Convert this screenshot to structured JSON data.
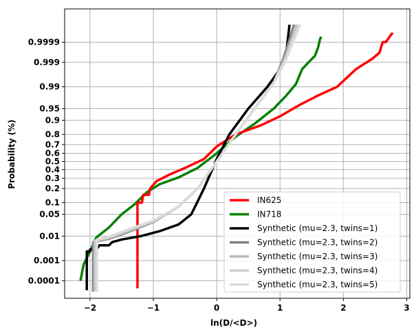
{
  "chart_data": {
    "type": "line",
    "xlabel": "ln(D/<D>)",
    "ylabel": "Probability (%)",
    "xlim": [
      -2.4,
      3.05
    ],
    "ylim_probability": [
      1e-05,
      0.999999
    ],
    "y_scale": "normal-probability",
    "grid": true,
    "legend_position": "bottom-right",
    "x_ticks": [
      -2,
      -1,
      0,
      1,
      2,
      3
    ],
    "x_tick_labels": [
      "−2",
      "−1",
      "0",
      "1",
      "2",
      "3"
    ],
    "y_ticks": [
      0.0001,
      0.001,
      0.01,
      0.05,
      0.1,
      0.2,
      0.3,
      0.4,
      0.5,
      0.6,
      0.7,
      0.8,
      0.9,
      0.95,
      0.99,
      0.999,
      0.9999
    ],
    "y_tick_labels": [
      "0.0001",
      "0.001",
      "0.01",
      "0.05",
      "0.1",
      "0.2",
      "0.3",
      "0.4",
      "0.5",
      "0.6",
      "0.7",
      "0.8",
      "0.9",
      "0.95",
      "0.99",
      "0.999",
      "0.9999"
    ],
    "series": [
      {
        "name": "IN625",
        "color": "#ff0000",
        "points": [
          [
            -1.25,
            3.8e-05
          ],
          [
            -1.25,
            0.0015
          ],
          [
            -1.25,
            0.1
          ],
          [
            -1.18,
            0.1
          ],
          [
            -1.16,
            0.15
          ],
          [
            -1.07,
            0.15
          ],
          [
            -1.05,
            0.2
          ],
          [
            -0.95,
            0.27
          ],
          [
            -0.75,
            0.34
          ],
          [
            -0.5,
            0.42
          ],
          [
            -0.2,
            0.53
          ],
          [
            0.0,
            0.68
          ],
          [
            0.3,
            0.8
          ],
          [
            0.7,
            0.87
          ],
          [
            1.0,
            0.92
          ],
          [
            1.3,
            0.96
          ],
          [
            1.6,
            0.98
          ],
          [
            1.9,
            0.99
          ],
          [
            2.2,
            0.998
          ],
          [
            2.45,
            0.9993
          ],
          [
            2.57,
            0.99965
          ],
          [
            2.62,
            0.9999
          ],
          [
            2.67,
            0.9999
          ],
          [
            2.75,
            0.99996
          ],
          [
            2.78,
            0.99997
          ]
        ]
      },
      {
        "name": "IN718",
        "color": "#008000",
        "points": [
          [
            -2.15,
            0.0001
          ],
          [
            -2.1,
            0.00065
          ],
          [
            -2.0,
            0.0025
          ],
          [
            -1.9,
            0.009
          ],
          [
            -1.7,
            0.02
          ],
          [
            -1.5,
            0.05
          ],
          [
            -1.3,
            0.09
          ],
          [
            -1.1,
            0.17
          ],
          [
            -0.9,
            0.24
          ],
          [
            -0.6,
            0.31
          ],
          [
            -0.3,
            0.42
          ],
          [
            0.0,
            0.6
          ],
          [
            0.3,
            0.78
          ],
          [
            0.6,
            0.88
          ],
          [
            0.9,
            0.95
          ],
          [
            1.1,
            0.98
          ],
          [
            1.25,
            0.992
          ],
          [
            1.35,
            0.998
          ],
          [
            1.45,
            0.999
          ],
          [
            1.55,
            0.9995
          ],
          [
            1.6,
            0.9998
          ],
          [
            1.63,
            0.99993
          ],
          [
            1.65,
            0.99995
          ]
        ]
      },
      {
        "name": "Synthetic (mu=2.3, twins=1)",
        "color": "#000000",
        "points": [
          [
            -2.05,
            3e-05
          ],
          [
            -2.05,
            0.0025
          ],
          [
            -2.0,
            0.0025
          ],
          [
            -2.0,
            0.003
          ],
          [
            -1.9,
            0.003
          ],
          [
            -1.85,
            0.0045
          ],
          [
            -1.7,
            0.0045
          ],
          [
            -1.65,
            0.006
          ],
          [
            -1.5,
            0.0075
          ],
          [
            -1.2,
            0.01
          ],
          [
            -0.9,
            0.015
          ],
          [
            -0.6,
            0.025
          ],
          [
            -0.4,
            0.05
          ],
          [
            -0.2,
            0.2
          ],
          [
            0.0,
            0.53
          ],
          [
            0.2,
            0.8
          ],
          [
            0.5,
            0.95
          ],
          [
            0.8,
            0.99
          ],
          [
            1.0,
            0.998
          ],
          [
            1.1,
            0.9997
          ],
          [
            1.15,
            0.99999
          ]
        ]
      },
      {
        "name": "Synthetic (mu=2.3, twins=2)",
        "color": "#808080",
        "points": [
          [
            -1.95,
            2.5e-05
          ],
          [
            -1.95,
            0.006
          ],
          [
            -1.7,
            0.008
          ],
          [
            -1.4,
            0.014
          ],
          [
            -1.0,
            0.03
          ],
          [
            -0.6,
            0.08
          ],
          [
            -0.3,
            0.2
          ],
          [
            0.0,
            0.5
          ],
          [
            0.3,
            0.8
          ],
          [
            0.6,
            0.95
          ],
          [
            0.9,
            0.993
          ],
          [
            1.05,
            0.9993
          ],
          [
            1.15,
            0.99993
          ],
          [
            1.22,
            0.99999
          ]
        ]
      },
      {
        "name": "Synthetic (mu=2.3, twins=3)",
        "color": "#b8b8b8",
        "points": [
          [
            -1.93,
            2.5e-05
          ],
          [
            -1.93,
            0.0065
          ],
          [
            -1.7,
            0.0085
          ],
          [
            -1.4,
            0.015
          ],
          [
            -1.0,
            0.031
          ],
          [
            -0.6,
            0.08
          ],
          [
            -0.3,
            0.2
          ],
          [
            0.0,
            0.5
          ],
          [
            0.3,
            0.8
          ],
          [
            0.6,
            0.95
          ],
          [
            0.9,
            0.993
          ],
          [
            1.07,
            0.9993
          ],
          [
            1.18,
            0.99993
          ],
          [
            1.25,
            0.99999
          ]
        ]
      },
      {
        "name": "Synthetic (mu=2.3, twins=4)",
        "color": "#cccccc",
        "points": [
          [
            -1.91,
            2.5e-05
          ],
          [
            -1.91,
            0.007
          ],
          [
            -1.7,
            0.009
          ],
          [
            -1.4,
            0.016
          ],
          [
            -1.0,
            0.032
          ],
          [
            -0.6,
            0.08
          ],
          [
            -0.3,
            0.2
          ],
          [
            0.0,
            0.5
          ],
          [
            0.3,
            0.8
          ],
          [
            0.6,
            0.95
          ],
          [
            0.9,
            0.993
          ],
          [
            1.09,
            0.9993
          ],
          [
            1.2,
            0.99993
          ],
          [
            1.28,
            0.99999
          ]
        ]
      },
      {
        "name": "Synthetic (mu=2.3, twins=5)",
        "color": "#dcdcdc",
        "points": [
          [
            -1.89,
            2.5e-05
          ],
          [
            -1.89,
            0.0075
          ],
          [
            -1.7,
            0.0095
          ],
          [
            -1.4,
            0.017
          ],
          [
            -1.0,
            0.033
          ],
          [
            -0.6,
            0.08
          ],
          [
            -0.3,
            0.2
          ],
          [
            0.0,
            0.5
          ],
          [
            0.3,
            0.8
          ],
          [
            0.6,
            0.95
          ],
          [
            0.9,
            0.993
          ],
          [
            1.1,
            0.9993
          ],
          [
            1.22,
            0.99993
          ],
          [
            1.32,
            0.99999
          ]
        ]
      }
    ]
  }
}
